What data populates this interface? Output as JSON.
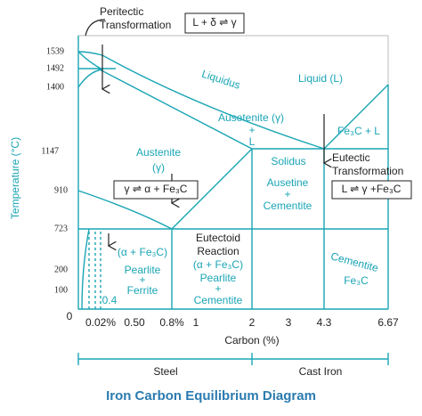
{
  "header": {
    "title": "Iron Carbon Equilibrium Diagram"
  },
  "axes": {
    "y_label": "Temperature (°C)",
    "x_label": "Carbon (%)",
    "y_ticks": [
      "1539",
      "1492",
      "1400",
      "1147",
      "910",
      "723",
      "200",
      "100",
      "0"
    ],
    "x_ticks": [
      "0.02%",
      "0.50",
      "0.8%",
      "1",
      "2",
      "3",
      "4.3",
      "6.67"
    ]
  },
  "ranges": [
    "Steel",
    "Cast Iron"
  ],
  "boxes": [
    "L + δ ⇌ γ",
    "γ ⇌ α + Fe₃C",
    "L ⇌ γ +Fe₃C"
  ],
  "labels": {
    "peritectic": [
      "Peritectic",
      "Transformation"
    ],
    "liquidus": "Liquidus",
    "liquid": "Liquid (L)",
    "austenite_liquid": [
      "Ausetenite (γ)",
      "+",
      "L"
    ],
    "fe3c_l": "Fe₃C + L",
    "austenite": [
      "Austenite",
      "(γ)"
    ],
    "solidus": "Solidus",
    "eutectic": [
      "Eutectic",
      "Transformation"
    ],
    "austenite_cementite": [
      "Ausetine",
      "+",
      "Cementite"
    ],
    "eutectoid": [
      "Eutectoid",
      "Reaction",
      "(α + Fe₃C)",
      "Pearlite",
      "+",
      "Cementite"
    ],
    "pearlite_ferrite": [
      "(α + Fe₃C)",
      "Pearlite",
      "+",
      "Ferrite"
    ],
    "small": "0.4",
    "cementite": [
      "Cementite",
      "Fe₃C"
    ]
  }
}
